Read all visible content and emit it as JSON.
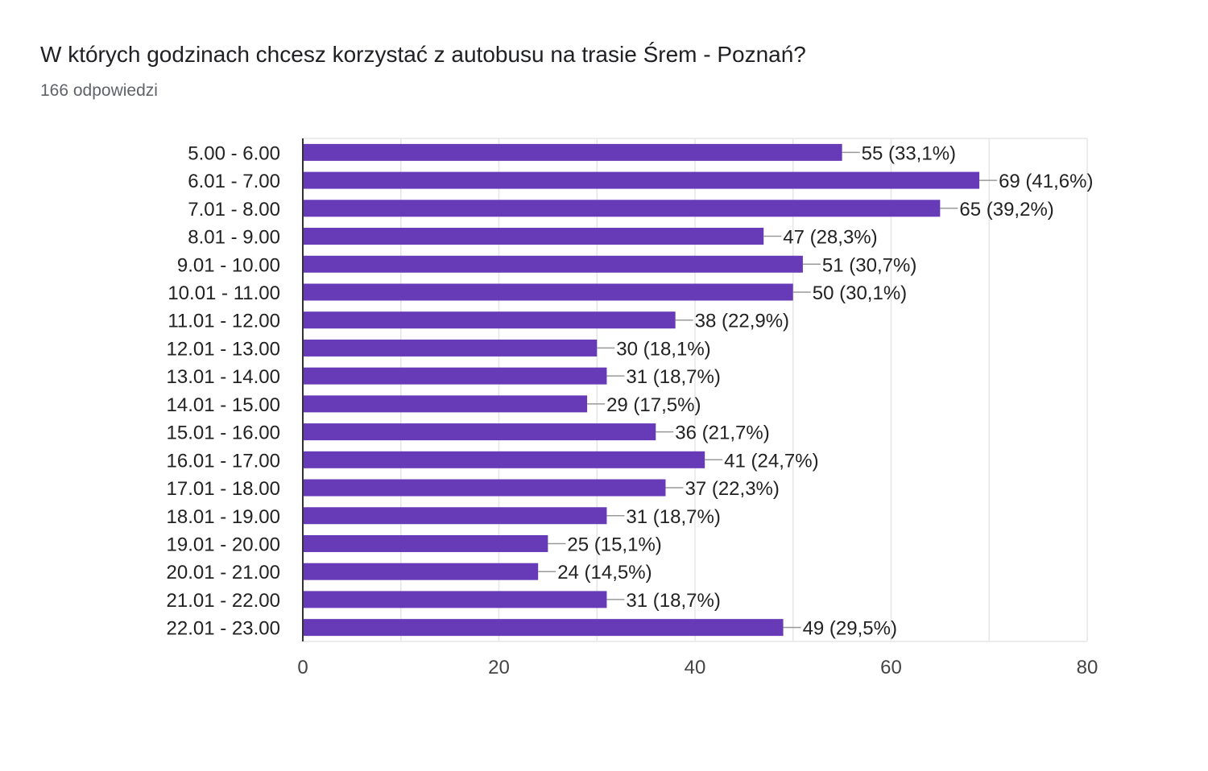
{
  "header": {
    "title": "W których godzinach chcesz korzystać z autobusu na trasie Śrem - Poznań?",
    "subtitle": "166 odpowiedzi"
  },
  "colors": {
    "bar": "#673ab7",
    "grid": "#e6e6e6",
    "axis": "#333333",
    "text": "#222222"
  },
  "chart_data": {
    "type": "bar",
    "orientation": "horizontal",
    "categories": [
      "5.00 - 6.00",
      "6.01 - 7.00",
      "7.01 - 8.00",
      "8.01 - 9.00",
      "9.01 - 10.00",
      "10.01 - 11.00",
      "11.01 - 12.00",
      "12.01 - 13.00",
      "13.01 - 14.00",
      "14.01 - 15.00",
      "15.01 - 16.00",
      "16.01 - 17.00",
      "17.01 - 18.00",
      "18.01 - 19.00",
      "19.01 - 20.00",
      "20.01 - 21.00",
      "21.01 - 22.00",
      "22.01 - 23.00"
    ],
    "values": [
      55,
      69,
      65,
      47,
      51,
      50,
      38,
      30,
      31,
      29,
      36,
      41,
      37,
      31,
      25,
      24,
      31,
      49
    ],
    "data_labels": [
      "55 (33,1%)",
      "69 (41,6%)",
      "65 (39,2%)",
      "47 (28,3%)",
      "51 (30,7%)",
      "50 (30,1%)",
      "38 (22,9%)",
      "30 (18,1%)",
      "31 (18,7%)",
      "29 (17,5%)",
      "36 (21,7%)",
      "41 (24,7%)",
      "37 (22,3%)",
      "31 (18,7%)",
      "25 (15,1%)",
      "24 (14,5%)",
      "31 (18,7%)",
      "49 (29,5%)"
    ],
    "xlim": [
      0,
      80
    ],
    "xticks": [
      "0",
      "20",
      "40",
      "60",
      "80"
    ],
    "grid": true,
    "legend": "none"
  }
}
